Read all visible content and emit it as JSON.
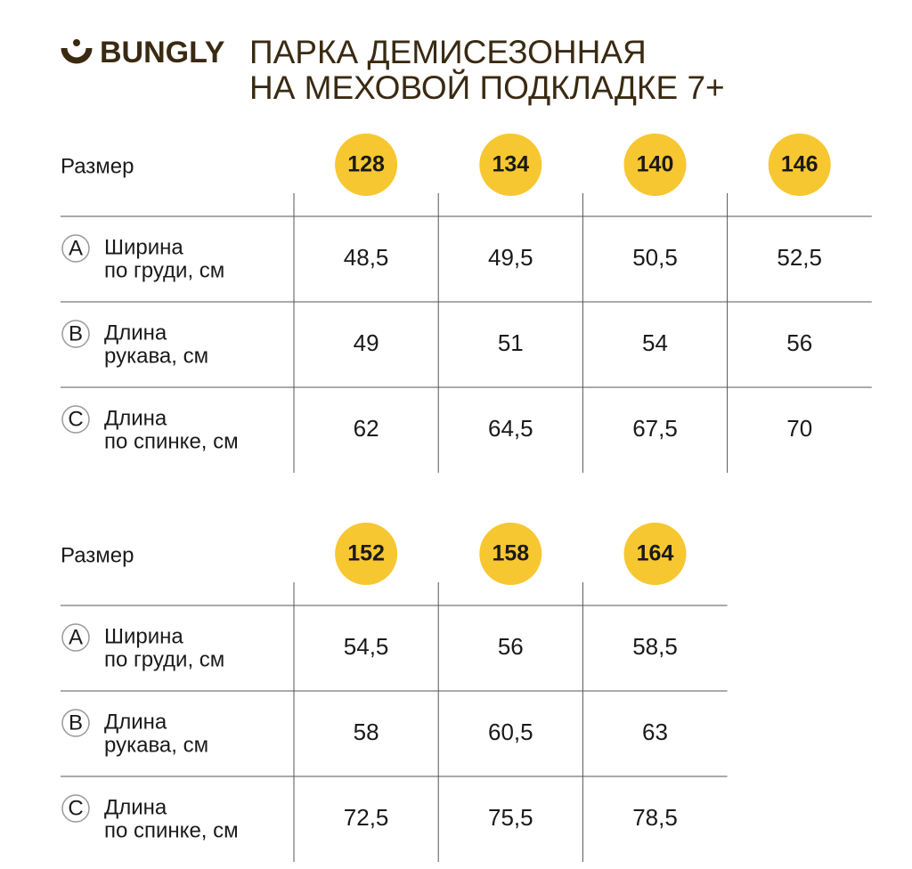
{
  "header": {
    "brand": "BUNGLY",
    "title": [
      "ПАРКА ДЕМИСЕЗОННАЯ",
      "НА МЕХОВОЙ ПОДКЛАДКЕ 7+"
    ]
  },
  "tables": [
    {
      "size_label": "Размер",
      "sizes": [
        "128",
        "134",
        "140",
        "146"
      ],
      "rows": [
        {
          "letter": "A",
          "label": [
            "Ширина",
            "по груди, см"
          ],
          "values": [
            "48,5",
            "49,5",
            "50,5",
            "52,5"
          ]
        },
        {
          "letter": "B",
          "label": [
            "Длина",
            "рукава, см"
          ],
          "values": [
            "49",
            "51",
            "54",
            "56"
          ]
        },
        {
          "letter": "C",
          "label": [
            "Длина",
            "по спинке, см"
          ],
          "values": [
            "62",
            "64,5",
            "67,5",
            "70"
          ]
        }
      ]
    },
    {
      "size_label": "Размер",
      "sizes": [
        "152",
        "158",
        "164"
      ],
      "rows": [
        {
          "letter": "A",
          "label": [
            "Ширина",
            "по груди, см"
          ],
          "values": [
            "54,5",
            "56",
            "58,5"
          ]
        },
        {
          "letter": "B",
          "label": [
            "Длина",
            "рукава, см"
          ],
          "values": [
            "58",
            "60,5",
            "63"
          ]
        },
        {
          "letter": "C",
          "label": [
            "Длина",
            "по спинке, см"
          ],
          "values": [
            "72,5",
            "75,5",
            "78,5"
          ]
        }
      ]
    }
  ]
}
